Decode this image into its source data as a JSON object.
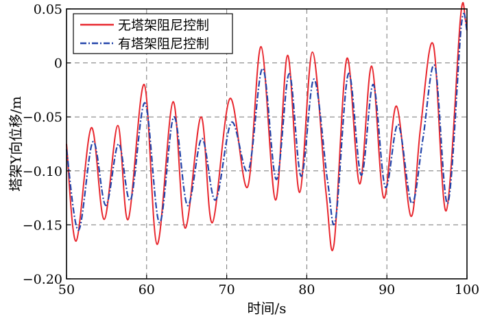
{
  "chart_data": {
    "type": "line",
    "xlabel": "时间/s",
    "ylabel": "塔架Y向位移/m",
    "xlim": [
      50,
      100
    ],
    "ylim": [
      -0.2,
      0.05
    ],
    "xticks": [
      50,
      60,
      70,
      80,
      90,
      100
    ],
    "xtick_labels": [
      "50",
      "60",
      "70",
      "80",
      "90",
      "100"
    ],
    "yticks": [
      0.05,
      0,
      -0.05,
      -0.1,
      -0.15,
      -0.2
    ],
    "ytick_labels": [
      "0.05",
      "0",
      "−0.05",
      "−0.10",
      "−0.15",
      "−0.20"
    ],
    "grid": true,
    "legend_position": "top-left",
    "series": [
      {
        "name": "无塔架阻尼控制",
        "color": "#e8262d",
        "style": "solid",
        "x": [
          50,
          51.2,
          53.1,
          54.7,
          56.4,
          57.7,
          59.7,
          61.3,
          63.3,
          64.8,
          66.8,
          68.2,
          70.4,
          72.6,
          74.3,
          76.1,
          77.6,
          79.1,
          80.7,
          82.4,
          83.4,
          85.0,
          86.6,
          88.1,
          89.6,
          91.2,
          93.0,
          94.2,
          95.8,
          97.4,
          99.2,
          99.8,
          100
        ],
        "y": [
          -0.075,
          -0.165,
          -0.06,
          -0.145,
          -0.058,
          -0.145,
          -0.02,
          -0.168,
          -0.036,
          -0.153,
          -0.05,
          -0.148,
          -0.033,
          -0.115,
          0.015,
          -0.127,
          0.007,
          -0.12,
          0.01,
          -0.12,
          -0.168,
          0.004,
          -0.112,
          -0.003,
          -0.125,
          -0.04,
          -0.142,
          -0.06,
          0.017,
          -0.137,
          0.043,
          0.04,
          0.03
        ]
      },
      {
        "name": "有塔架阻尼控制",
        "color": "#2244aa",
        "style": "dashdot",
        "x": [
          50,
          51.5,
          53.3,
          54.9,
          56.5,
          58.0,
          59.8,
          61.6,
          63.4,
          65.1,
          66.9,
          68.6,
          70.6,
          72.7,
          74.5,
          76.2,
          77.8,
          79.3,
          80.9,
          82.6,
          83.6,
          85.2,
          86.8,
          88.3,
          89.8,
          91.4,
          93.1,
          94.5,
          96.0,
          97.6,
          99.3,
          100
        ],
        "y": [
          -0.08,
          -0.155,
          -0.073,
          -0.132,
          -0.075,
          -0.127,
          -0.037,
          -0.148,
          -0.05,
          -0.132,
          -0.07,
          -0.127,
          -0.055,
          -0.1,
          -0.005,
          -0.108,
          -0.01,
          -0.105,
          -0.015,
          -0.11,
          -0.145,
          -0.01,
          -0.104,
          -0.02,
          -0.115,
          -0.057,
          -0.13,
          -0.07,
          -0.003,
          -0.13,
          0.035,
          0.03
        ]
      }
    ]
  }
}
